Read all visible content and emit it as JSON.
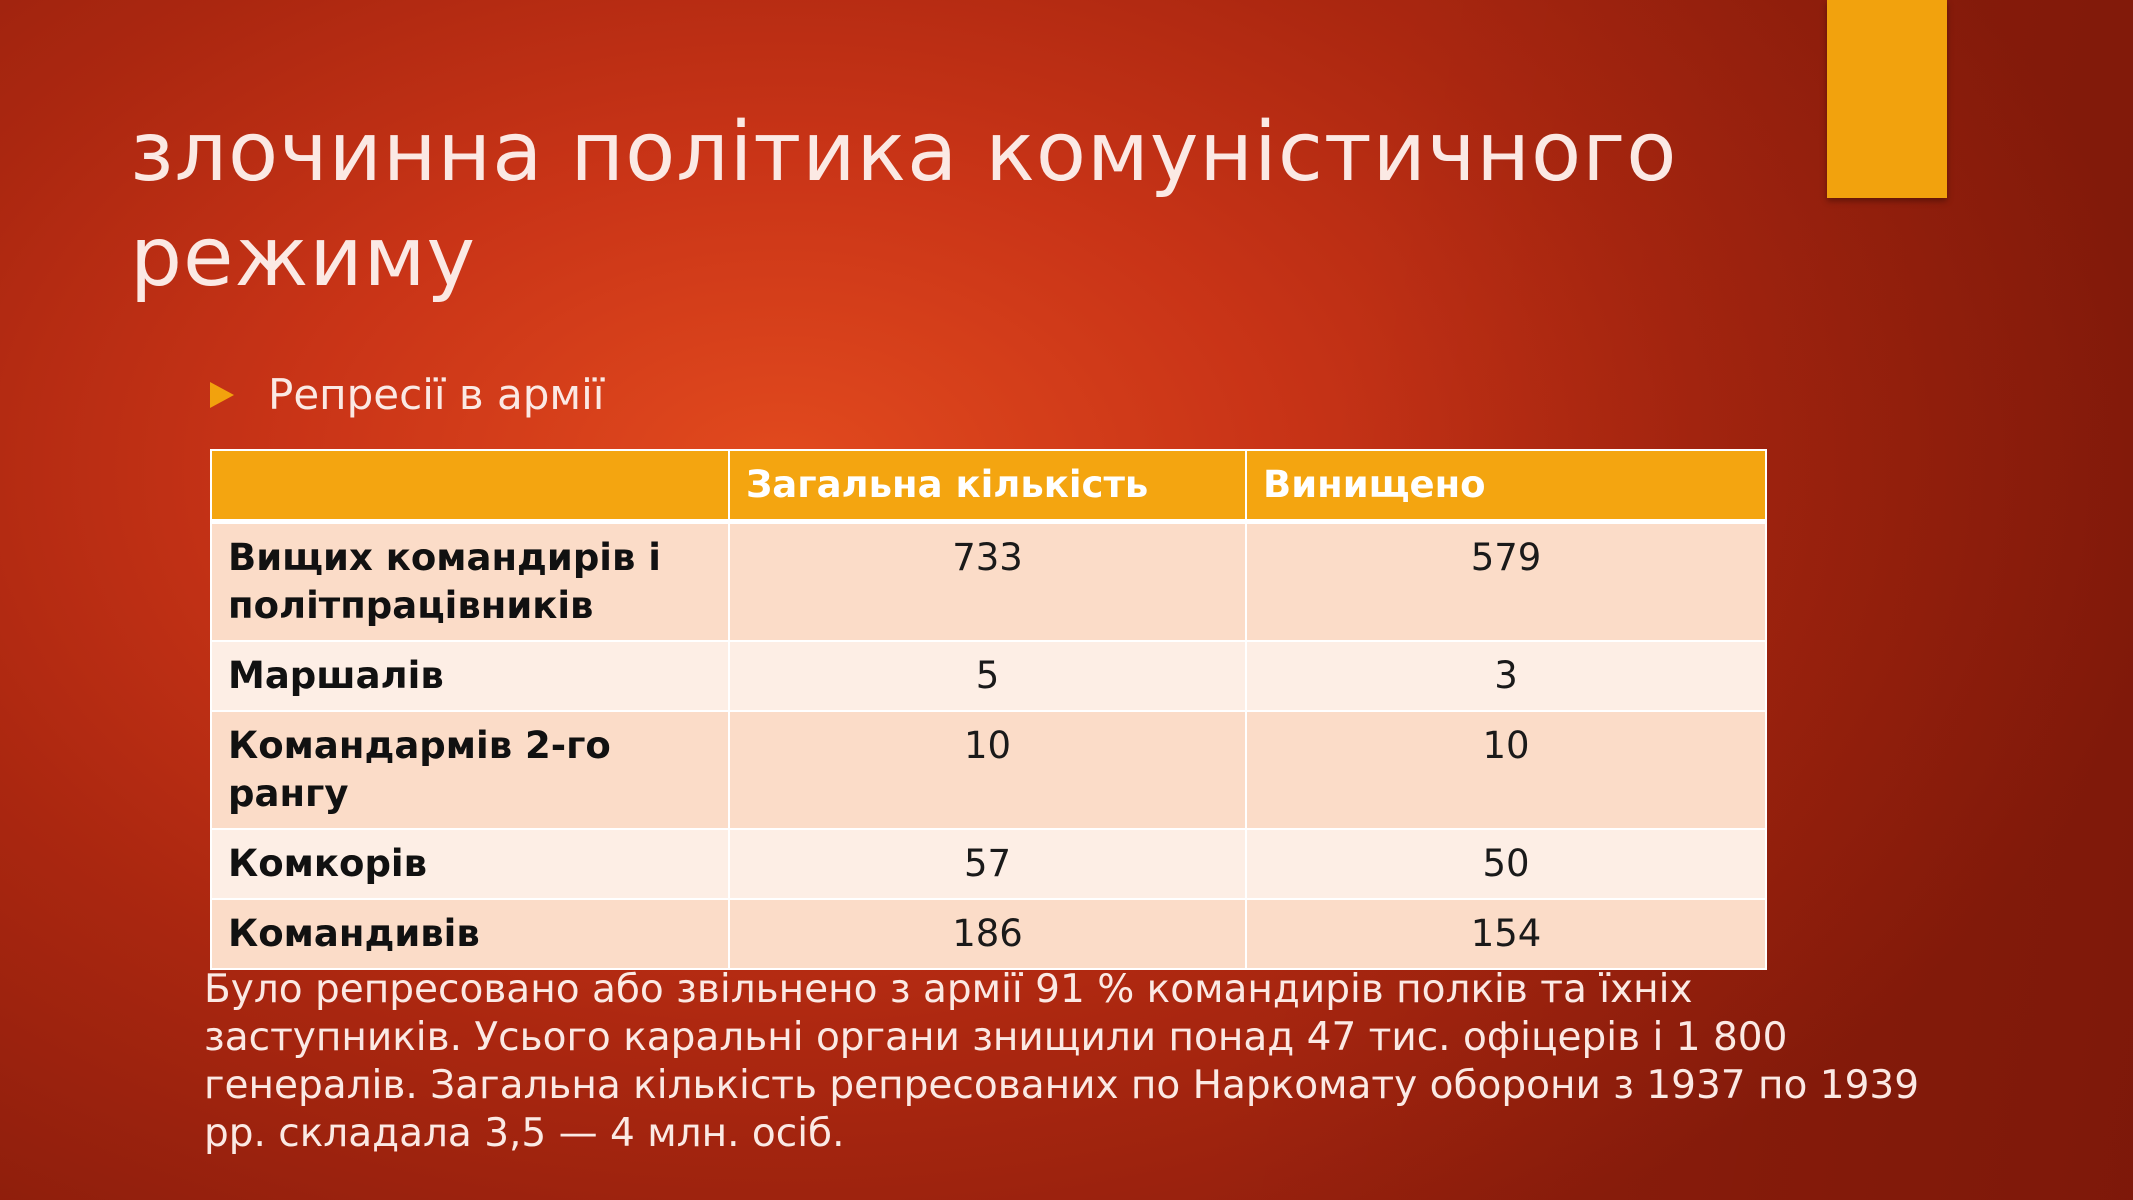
{
  "slide": {
    "title": "злочинна політика комуністичного режиму",
    "bullet": "Репресії в армії",
    "table": {
      "headers": [
        "",
        "Загальна кількість",
        "Винищено"
      ],
      "rows": [
        {
          "label": "Вищих командирів і політпрацівників",
          "total": "733",
          "destroyed": "579"
        },
        {
          "label": "Маршалів",
          "total": "5",
          "destroyed": "3"
        },
        {
          "label": "Командармів 2-го рангу",
          "total": "10",
          "destroyed": "10"
        },
        {
          "label": "Комкорів",
          "total": "57",
          "destroyed": "50"
        },
        {
          "label": "Командивів",
          "total": "186",
          "destroyed": "154"
        }
      ]
    },
    "footer": "Було репресовано або звільнено з армії 91 % командирів полків та їхніх заступників. Усього каральні органи знищили понад 47 тис. офіцерів і 1 800 генералів. Загальна кількість репресованих по Наркомату оборони з 1937 по 1939 рр. складала 3,5 — 4 млн. осіб."
  },
  "colors": {
    "accent": "#f2a20d",
    "header_fill": "#f4a510",
    "row_fill_dark": "#fbdcc8",
    "row_fill_light": "#fdeee5",
    "background": "#c93417"
  },
  "icons": {
    "bullet": "triangle-right-icon"
  }
}
